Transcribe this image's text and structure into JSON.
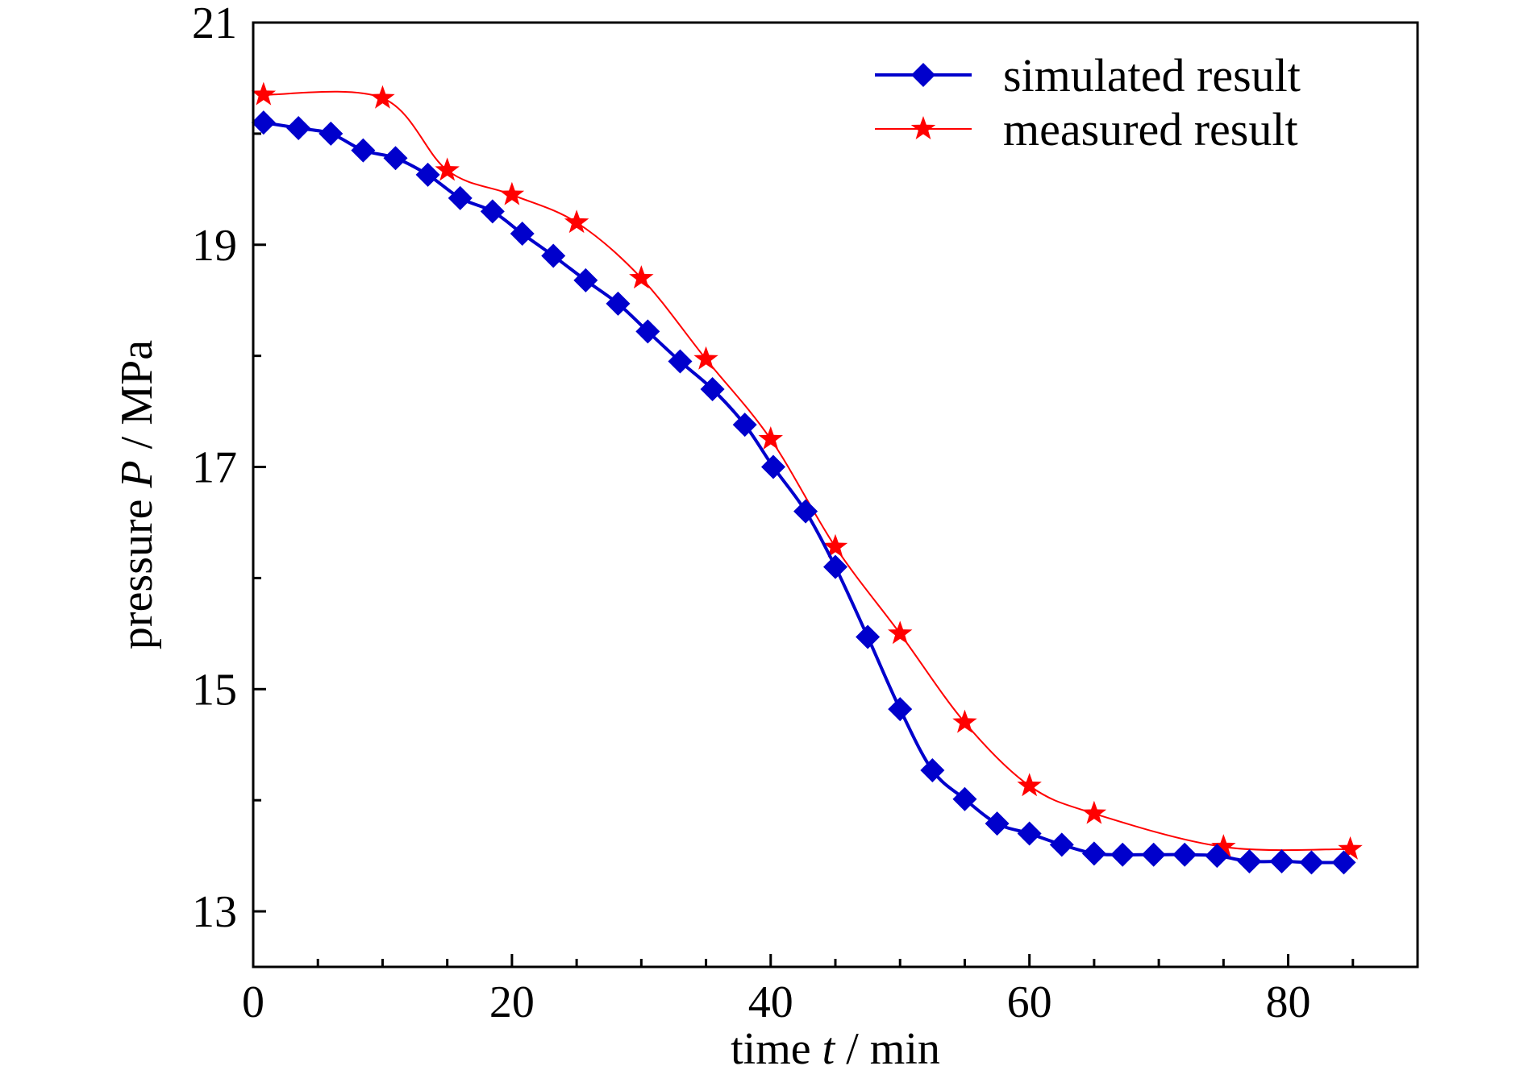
{
  "chart_data": {
    "type": "line",
    "title": "",
    "xlabel": {
      "prefix": "time ",
      "var": "t",
      "suffix": " / min"
    },
    "ylabel": {
      "prefix": "pressure ",
      "var": "P",
      "suffix": " / MPa"
    },
    "xlim": [
      0,
      90
    ],
    "ylim": [
      12.5,
      21
    ],
    "x_ticks": [
      0,
      20,
      40,
      60,
      80
    ],
    "y_ticks": [
      13,
      15,
      17,
      19,
      21
    ],
    "x_minor_ticks": [
      5,
      10,
      15,
      25,
      30,
      35,
      45,
      50,
      55,
      65,
      70,
      75,
      85
    ],
    "y_minor_ticks": [
      14,
      16,
      18,
      20
    ],
    "grid": false,
    "legend_position": "top-right",
    "series": [
      {
        "name": "simulated result",
        "color": "#0000cc",
        "marker": "diamond",
        "x": [
          0.8,
          3.5,
          6,
          8.5,
          11,
          13.5,
          16,
          18.5,
          20.8,
          23.2,
          25.7,
          28.2,
          30.5,
          33,
          35.5,
          38,
          40.2,
          42.7,
          45,
          47.5,
          50,
          52.5,
          55,
          57.5,
          60,
          62.5,
          65,
          67.2,
          69.6,
          72,
          74.5,
          77,
          79.5,
          81.8,
          84.3
        ],
        "y": [
          20.1,
          20.05,
          20.0,
          19.85,
          19.78,
          19.63,
          19.42,
          19.3,
          19.1,
          18.9,
          18.68,
          18.47,
          18.22,
          17.95,
          17.7,
          17.38,
          17.0,
          16.6,
          16.1,
          15.47,
          14.82,
          14.27,
          14.01,
          13.79,
          13.7,
          13.6,
          13.52,
          13.51,
          13.51,
          13.51,
          13.5,
          13.45,
          13.45,
          13.44,
          13.44
        ]
      },
      {
        "name": "measured result",
        "color": "#ff0000",
        "marker": "star",
        "x": [
          0.8,
          10,
          15,
          20,
          25,
          30,
          35,
          40,
          45,
          50,
          55,
          60,
          65,
          75,
          84.8
        ],
        "y": [
          20.35,
          20.32,
          19.67,
          19.45,
          19.2,
          18.7,
          17.97,
          17.25,
          16.28,
          15.5,
          14.7,
          14.13,
          13.88,
          13.58,
          13.56
        ]
      }
    ]
  }
}
